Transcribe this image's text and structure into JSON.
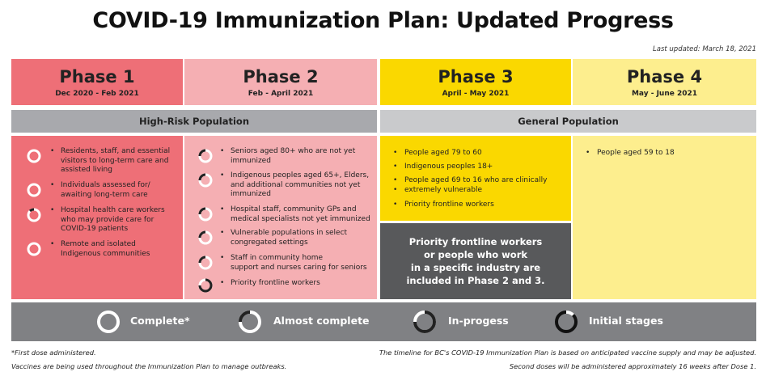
{
  "title": "COVID-19 Immunization Plan: Updated Progress",
  "last_updated": "Last updated: March 18, 2021",
  "phases": [
    {
      "name": "Phase 1",
      "dates": "Dec 2020 - Feb 2021",
      "color": "#ee6f77"
    },
    {
      "name": "Phase 2",
      "dates": "Feb - April 2021",
      "color": "#f5afb3"
    },
    {
      "name": "Phase 3",
      "dates": "April - May 2021",
      "color": "#fad800"
    },
    {
      "name": "Phase 4",
      "dates": "May - June 2021",
      "color": "#fdee8e"
    }
  ],
  "bands": {
    "high_risk": "High-Risk Population",
    "general": "General Population"
  },
  "phase1_items": [
    {
      "text_lines": [
        "Residents, staff, and essential",
        "visitors to long-term care and",
        "assisted living"
      ],
      "status": "complete"
    },
    {
      "text_lines": [
        "Individuals assessed for/",
        "awaiting long-term care"
      ],
      "status": "complete"
    },
    {
      "text_lines": [
        "Hospital health care workers",
        "who may provide care for",
        "COVID-19 patients"
      ],
      "status": "almost-complete"
    },
    {
      "text_lines": [
        "Remote and isolated",
        "Indigenous communities"
      ],
      "status": "complete"
    }
  ],
  "phase2_items": [
    {
      "text_lines": [
        "Seniors aged 80+ who are not yet",
        "immunized"
      ],
      "status": "almost-complete"
    },
    {
      "text_lines": [
        "Indigenous peoples aged 65+, Elders,",
        "and additional communities not yet",
        "immunized"
      ],
      "status": "almost-complete"
    },
    {
      "text_lines": [
        "Hospital staff, community GPs and",
        "medical specialists not yet immunized"
      ],
      "status": "almost-complete"
    },
    {
      "text_lines": [
        "Vulnerable populations in select",
        "congregated settings"
      ],
      "status": "almost-complete"
    },
    {
      "text_lines": [
        "Staff in community home",
        "support and nurses caring for seniors"
      ],
      "status": "almost-complete"
    },
    {
      "text_lines": [
        "Priority frontline workers"
      ],
      "status": "in-progress"
    }
  ],
  "phase3_items": [
    "People aged 79 to 60",
    "Indigenous peoples 18+",
    "People aged 69 to 16 who are clinically",
    "extremely vulnerable",
    "Priority frontline workers"
  ],
  "phase4_items": [
    "People aged 59 to 18"
  ],
  "note_box": [
    "Priority frontline workers",
    "or people who work",
    "in a specific industry are",
    "included in Phase 2 and 3."
  ],
  "legend": [
    {
      "label": "Complete*",
      "icon": "ring-complete-icon"
    },
    {
      "label": "Almost complete",
      "icon": "ring-almost-icon"
    },
    {
      "label": "In-progess",
      "icon": "ring-inprogress-icon"
    },
    {
      "label": "Initial stages",
      "icon": "ring-initial-icon"
    }
  ],
  "footnotes": {
    "left1": "*First dose administered.",
    "left2": "Vaccines are being used throughout the Immunization Plan to manage outbreaks.",
    "right1": "The timeline for BC's COVID-19 Immunization Plan is based on anticipated vaccine supply and may be adjusted.",
    "right2": "Second doses will be administered approximately 16 weeks after Dose 1."
  },
  "colors": {
    "band_high_risk": "#a8a9ad",
    "band_general": "#c9cacc",
    "legend_bg": "#808184",
    "note_bg": "#58595b"
  }
}
